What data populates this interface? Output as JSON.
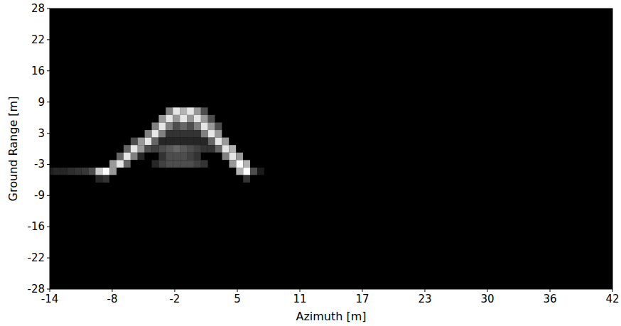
{
  "chart_data": {
    "type": "heatmap",
    "x_label": "Azimuth [m]",
    "y_label": "Ground Range [m]",
    "xlim": [
      -14,
      42
    ],
    "ylim": [
      -28,
      28
    ],
    "xticks": [
      -14,
      {
        "value": -7.78,
        "label": "-8"
      },
      {
        "value": -1.56,
        "label": "-2"
      },
      {
        "value": 4.67,
        "label": "5"
      },
      {
        "value": 10.89,
        "label": "11"
      },
      {
        "value": 17.11,
        "label": "17"
      },
      {
        "value": 23.33,
        "label": "23"
      },
      {
        "value": 29.56,
        "label": "30"
      },
      {
        "value": 35.78,
        "label": "36"
      },
      42
    ],
    "yticks": [
      28,
      {
        "value": 21.78,
        "label": "22"
      },
      {
        "value": 15.56,
        "label": "16"
      },
      {
        "value": 9.33,
        "label": "9"
      },
      {
        "value": 3.11,
        "label": "3"
      },
      {
        "value": -3.11,
        "label": "-3"
      },
      {
        "value": -9.33,
        "label": "-9"
      },
      {
        "value": -15.56,
        "label": "-16"
      },
      {
        "value": -21.78,
        "label": "-22"
      },
      -28
    ],
    "x": [
      -14,
      -13.3,
      -12.6,
      -11.9,
      -11.2,
      -10.5,
      -9.8,
      -9.1,
      -8.4,
      -7.7,
      -7,
      -6.3,
      -5.6,
      -4.9,
      -4.2,
      -3.5,
      -2.8,
      -2.1,
      -1.4,
      -0.7,
      0,
      0.7,
      1.4,
      2.1,
      2.8,
      3.5,
      4.2,
      4.9,
      5.6,
      6.3,
      7
    ],
    "y": [
      9,
      7.5,
      6,
      4.5,
      3,
      1.5,
      0,
      -1.5,
      -3,
      -4.5,
      -6
    ],
    "zlim": [
      0,
      1
    ],
    "z": [
      [
        0,
        0,
        0,
        0,
        0,
        0,
        0,
        0,
        0,
        0,
        0,
        0,
        0,
        0,
        0,
        0,
        0,
        0,
        0,
        0,
        0,
        0,
        0,
        0,
        0,
        0,
        0,
        0,
        0,
        0,
        0
      ],
      [
        0,
        0,
        0,
        0,
        0,
        0,
        0,
        0,
        0,
        0,
        0,
        0,
        0,
        0,
        0,
        0,
        0,
        0.5,
        0.9,
        0.7,
        0.9,
        0.6,
        0.3,
        0,
        0,
        0,
        0,
        0,
        0,
        0,
        0
      ],
      [
        0,
        0,
        0,
        0,
        0,
        0,
        0,
        0,
        0,
        0,
        0,
        0,
        0,
        0,
        0,
        0,
        0.6,
        0.9,
        0.6,
        0.9,
        0.6,
        0.9,
        0.6,
        0.3,
        0,
        0,
        0,
        0,
        0,
        0,
        0
      ],
      [
        0,
        0,
        0,
        0,
        0,
        0,
        0,
        0,
        0,
        0,
        0,
        0,
        0,
        0,
        0,
        0.5,
        0.9,
        0.5,
        0.3,
        0.4,
        0.3,
        0.5,
        0.9,
        0.6,
        0.3,
        0,
        0,
        0,
        0,
        0,
        0
      ],
      [
        0,
        0,
        0,
        0,
        0,
        0,
        0,
        0,
        0,
        0,
        0,
        0,
        0,
        0,
        0.5,
        0.9,
        0.5,
        0.2,
        0.2,
        0.2,
        0.2,
        0.2,
        0.5,
        0.9,
        0.6,
        0,
        0,
        0,
        0,
        0,
        0
      ],
      [
        0,
        0,
        0,
        0,
        0,
        0,
        0,
        0,
        0,
        0,
        0,
        0,
        0.3,
        0.6,
        0.9,
        0.4,
        0.15,
        0.15,
        0.15,
        0.15,
        0.15,
        0.15,
        0.15,
        0.4,
        0.9,
        0.6,
        0,
        0,
        0,
        0,
        0
      ],
      [
        0,
        0,
        0,
        0,
        0,
        0,
        0,
        0,
        0,
        0,
        0,
        0.4,
        0.9,
        0.6,
        0.3,
        0.25,
        0.3,
        0.35,
        0.4,
        0.35,
        0.3,
        0.25,
        0.2,
        0.2,
        0.4,
        0.9,
        0.7,
        0,
        0,
        0,
        0
      ],
      [
        0,
        0,
        0,
        0,
        0,
        0,
        0,
        0,
        0,
        0,
        0.4,
        0.9,
        0.5,
        0.15,
        0,
        0,
        0.2,
        0.3,
        0.3,
        0.3,
        0.25,
        0.2,
        0,
        0,
        0,
        0.5,
        0.9,
        0.6,
        0,
        0,
        0
      ],
      [
        0,
        0,
        0,
        0,
        0,
        0,
        0,
        0,
        0,
        0.6,
        0.9,
        0.4,
        0,
        0,
        0,
        0.15,
        0.25,
        0.3,
        0.3,
        0.3,
        0.3,
        0.25,
        0.2,
        0,
        0,
        0,
        0.6,
        1,
        0.7,
        0,
        0
      ],
      [
        0.12,
        0.15,
        0.15,
        0.18,
        0.2,
        0.22,
        0.3,
        0.8,
        1,
        0.6,
        0,
        0,
        0,
        0,
        0,
        0,
        0,
        0,
        0,
        0,
        0,
        0,
        0,
        0,
        0,
        0,
        0,
        0.7,
        1,
        0.3,
        0.1
      ],
      [
        0,
        0,
        0,
        0,
        0,
        0,
        0,
        0.15,
        0.2,
        0,
        0,
        0,
        0,
        0,
        0,
        0,
        0,
        0,
        0,
        0,
        0,
        0,
        0,
        0,
        0,
        0,
        0,
        0,
        0.2,
        0,
        0
      ]
    ]
  }
}
